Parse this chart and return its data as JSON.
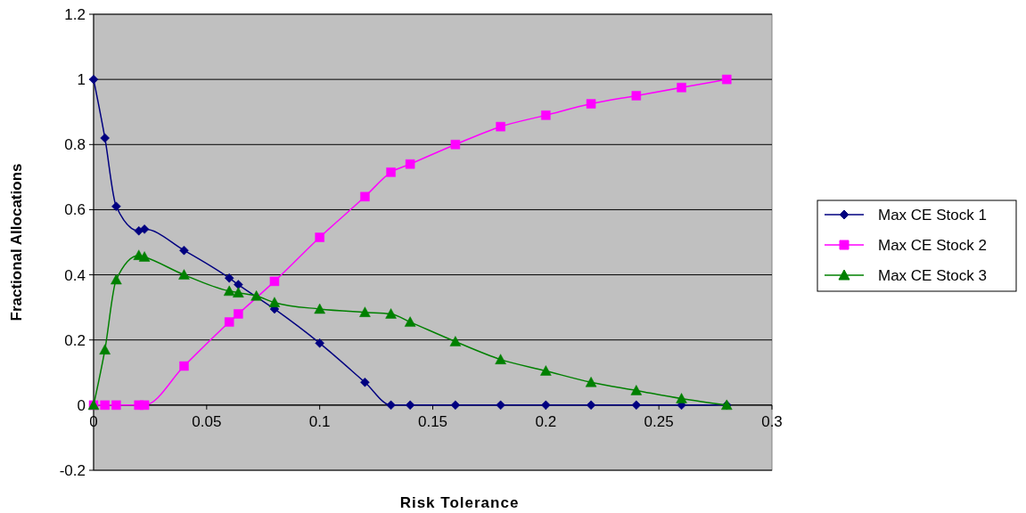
{
  "chart_data": {
    "type": "line",
    "xlabel": "Risk Tolerance",
    "ylabel": "Fractional Allocations",
    "x": [
      0,
      0.005,
      0.01,
      0.02,
      0.0225,
      0.04,
      0.06,
      0.064,
      0.072,
      0.08,
      0.1,
      0.12,
      0.1315,
      0.14,
      0.16,
      0.18,
      0.2,
      0.22,
      0.24,
      0.26,
      0.28
    ],
    "series": [
      {
        "name": "Max CE Stock 1",
        "color": "#000080",
        "marker": "diamond",
        "x": [
          0,
          0.005,
          0.01,
          0.02,
          0.0225,
          0.04,
          0.06,
          0.064,
          0.08,
          0.1,
          0.12,
          0.1315,
          0.14,
          0.16,
          0.18,
          0.2,
          0.22,
          0.24,
          0.26,
          0.28
        ],
        "values": [
          1,
          0.82,
          0.61,
          0.535,
          0.54,
          0.475,
          0.39,
          0.37,
          0.295,
          0.19,
          0.07,
          0,
          0,
          0,
          0,
          0,
          0,
          0,
          0,
          0
        ]
      },
      {
        "name": "Max CE Stock 2",
        "color": "#ff00ff",
        "marker": "square",
        "x": [
          0,
          0.005,
          0.01,
          0.02,
          0.0225,
          0.04,
          0.06,
          0.064,
          0.08,
          0.1,
          0.12,
          0.1315,
          0.14,
          0.16,
          0.18,
          0.2,
          0.22,
          0.24,
          0.26,
          0.28
        ],
        "values": [
          0,
          0,
          0,
          0,
          0,
          0.12,
          0.255,
          0.28,
          0.38,
          0.515,
          0.64,
          0.715,
          0.74,
          0.8,
          0.855,
          0.89,
          0.925,
          0.95,
          0.975,
          1
        ]
      },
      {
        "name": "Max CE Stock 3",
        "color": "#008000",
        "marker": "triangle",
        "values": [
          0,
          0.17,
          0.385,
          0.46,
          0.455,
          0.4,
          0.35,
          0.345,
          0.335,
          0.315,
          0.295,
          0.285,
          0.28,
          0.255,
          0.195,
          0.14,
          0.105,
          0.07,
          0.045,
          0.02,
          0
        ]
      }
    ],
    "xlim": [
      0,
      0.3
    ],
    "xticks": [
      0,
      0.05,
      0.1,
      0.15,
      0.2,
      0.25,
      0.3
    ],
    "ylim": [
      -0.2,
      1.2
    ],
    "yticks": [
      -0.2,
      0,
      0.2,
      0.4,
      0.6,
      0.8,
      1,
      1.2
    ],
    "grid": "y",
    "legend": "right"
  }
}
